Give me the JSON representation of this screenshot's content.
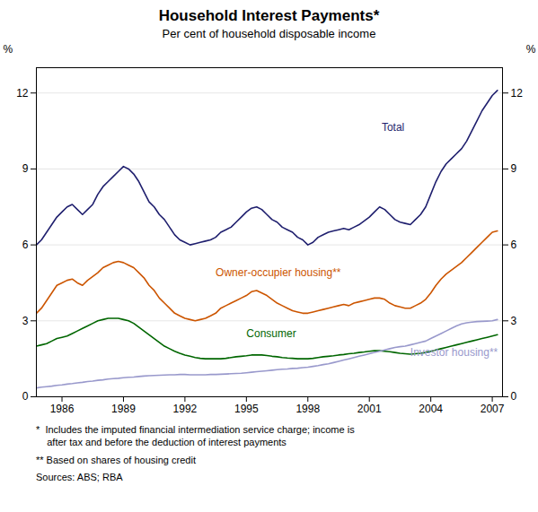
{
  "chart_data": {
    "type": "line",
    "title": "Household Interest Payments*",
    "subtitle": "Per cent of household disposable income",
    "footnotes": [
      "*  Includes the imputed financial intermediation service charge; income is\n    after tax and before the deduction of interest payments",
      "** Based on shares of housing credit",
      "Sources: ABS; RBA"
    ],
    "ylabel": "%",
    "x": [
      1984.75,
      1985.0,
      1985.25,
      1985.5,
      1985.75,
      1986.0,
      1986.25,
      1986.5,
      1986.75,
      1987.0,
      1987.25,
      1987.5,
      1987.75,
      1988.0,
      1988.25,
      1988.5,
      1988.75,
      1989.0,
      1989.25,
      1989.5,
      1989.75,
      1990.0,
      1990.25,
      1990.5,
      1990.75,
      1991.0,
      1991.25,
      1991.5,
      1991.75,
      1992.0,
      1992.25,
      1992.5,
      1992.75,
      1993.0,
      1993.25,
      1993.5,
      1993.75,
      1994.0,
      1994.25,
      1994.5,
      1994.75,
      1995.0,
      1995.25,
      1995.5,
      1995.75,
      1996.0,
      1996.25,
      1996.5,
      1996.75,
      1997.0,
      1997.25,
      1997.5,
      1997.75,
      1998.0,
      1998.25,
      1998.5,
      1998.75,
      1999.0,
      1999.25,
      1999.5,
      1999.75,
      2000.0,
      2000.25,
      2000.5,
      2000.75,
      2001.0,
      2001.25,
      2001.5,
      2001.75,
      2002.0,
      2002.25,
      2002.5,
      2002.75,
      2003.0,
      2003.25,
      2003.5,
      2003.75,
      2004.0,
      2004.25,
      2004.5,
      2004.75,
      2005.0,
      2005.25,
      2005.5,
      2005.75,
      2006.0,
      2006.25,
      2006.5,
      2006.75,
      2007.0,
      2007.25
    ],
    "series": [
      {
        "name": "Total",
        "color": "#1f1f6e",
        "values": [
          6.0,
          6.2,
          6.5,
          6.8,
          7.1,
          7.3,
          7.5,
          7.6,
          7.4,
          7.2,
          7.4,
          7.6,
          8.0,
          8.3,
          8.5,
          8.7,
          8.9,
          9.1,
          9.0,
          8.8,
          8.5,
          8.1,
          7.7,
          7.5,
          7.2,
          7.0,
          6.7,
          6.4,
          6.2,
          6.1,
          6.0,
          6.05,
          6.1,
          6.15,
          6.2,
          6.3,
          6.5,
          6.6,
          6.7,
          6.9,
          7.1,
          7.3,
          7.45,
          7.5,
          7.4,
          7.2,
          7.0,
          6.9,
          6.7,
          6.6,
          6.5,
          6.3,
          6.2,
          6.0,
          6.1,
          6.3,
          6.4,
          6.5,
          6.55,
          6.6,
          6.65,
          6.6,
          6.7,
          6.8,
          6.95,
          7.1,
          7.3,
          7.5,
          7.4,
          7.2,
          7.0,
          6.9,
          6.85,
          6.8,
          7.0,
          7.2,
          7.5,
          8.0,
          8.5,
          8.9,
          9.2,
          9.4,
          9.6,
          9.8,
          10.1,
          10.5,
          10.9,
          11.3,
          11.6,
          11.9,
          12.1
        ]
      },
      {
        "name": "Owner-occupier housing**",
        "color": "#cc5500",
        "values": [
          3.3,
          3.5,
          3.8,
          4.1,
          4.4,
          4.5,
          4.6,
          4.65,
          4.5,
          4.4,
          4.6,
          4.75,
          4.9,
          5.1,
          5.2,
          5.3,
          5.35,
          5.3,
          5.2,
          5.1,
          4.9,
          4.7,
          4.4,
          4.2,
          3.9,
          3.7,
          3.5,
          3.3,
          3.2,
          3.1,
          3.05,
          3.0,
          3.05,
          3.1,
          3.2,
          3.3,
          3.5,
          3.6,
          3.7,
          3.8,
          3.9,
          4.0,
          4.15,
          4.2,
          4.1,
          4.0,
          3.85,
          3.7,
          3.6,
          3.5,
          3.4,
          3.35,
          3.3,
          3.3,
          3.35,
          3.4,
          3.45,
          3.5,
          3.55,
          3.6,
          3.65,
          3.6,
          3.7,
          3.75,
          3.8,
          3.85,
          3.9,
          3.9,
          3.85,
          3.7,
          3.6,
          3.55,
          3.5,
          3.5,
          3.6,
          3.7,
          3.85,
          4.1,
          4.4,
          4.65,
          4.85,
          5.0,
          5.15,
          5.3,
          5.5,
          5.7,
          5.9,
          6.1,
          6.3,
          6.5,
          6.55
        ]
      },
      {
        "name": "Consumer",
        "color": "#006600",
        "values": [
          2.0,
          2.05,
          2.1,
          2.2,
          2.3,
          2.35,
          2.4,
          2.5,
          2.6,
          2.7,
          2.8,
          2.9,
          3.0,
          3.05,
          3.1,
          3.1,
          3.1,
          3.05,
          3.0,
          2.9,
          2.75,
          2.6,
          2.45,
          2.3,
          2.15,
          2.0,
          1.9,
          1.8,
          1.72,
          1.65,
          1.6,
          1.55,
          1.52,
          1.5,
          1.5,
          1.5,
          1.5,
          1.52,
          1.55,
          1.58,
          1.6,
          1.62,
          1.65,
          1.65,
          1.65,
          1.63,
          1.6,
          1.58,
          1.55,
          1.53,
          1.52,
          1.5,
          1.5,
          1.5,
          1.52,
          1.55,
          1.58,
          1.6,
          1.62,
          1.65,
          1.67,
          1.7,
          1.72,
          1.75,
          1.77,
          1.8,
          1.82,
          1.82,
          1.8,
          1.78,
          1.75,
          1.72,
          1.7,
          1.68,
          1.7,
          1.72,
          1.75,
          1.8,
          1.85,
          1.9,
          1.95,
          2.0,
          2.05,
          2.1,
          2.15,
          2.2,
          2.25,
          2.3,
          2.35,
          2.4,
          2.45
        ]
      },
      {
        "name": "Investor housing**",
        "color": "#9999cc",
        "values": [
          0.35,
          0.38,
          0.4,
          0.42,
          0.45,
          0.47,
          0.5,
          0.52,
          0.55,
          0.57,
          0.6,
          0.62,
          0.65,
          0.67,
          0.7,
          0.72,
          0.73,
          0.75,
          0.77,
          0.78,
          0.8,
          0.82,
          0.83,
          0.84,
          0.85,
          0.86,
          0.87,
          0.87,
          0.88,
          0.88,
          0.87,
          0.87,
          0.87,
          0.87,
          0.88,
          0.88,
          0.89,
          0.9,
          0.91,
          0.92,
          0.93,
          0.95,
          0.97,
          0.99,
          1.01,
          1.03,
          1.05,
          1.07,
          1.09,
          1.1,
          1.12,
          1.13,
          1.15,
          1.17,
          1.2,
          1.23,
          1.27,
          1.3,
          1.35,
          1.4,
          1.45,
          1.5,
          1.55,
          1.6,
          1.65,
          1.7,
          1.75,
          1.8,
          1.85,
          1.9,
          1.95,
          1.98,
          2.0,
          2.05,
          2.1,
          2.15,
          2.2,
          2.3,
          2.4,
          2.5,
          2.6,
          2.7,
          2.8,
          2.88,
          2.92,
          2.95,
          2.97,
          2.98,
          2.99,
          3.0,
          3.05
        ]
      }
    ],
    "annotations": [
      {
        "text": "Total",
        "x": 2001.6,
        "y": 10.5
      },
      {
        "text": "Owner-occupier housing**",
        "x": 1993.5,
        "y": 4.75
      },
      {
        "text": "Consumer",
        "x": 1995.0,
        "y": 2.35
      },
      {
        "text": "Investor housing**",
        "x": 2003.0,
        "y": 1.6
      }
    ],
    "xlim": [
      1984.75,
      2007.5
    ],
    "xticks": [
      1986,
      1989,
      1992,
      1995,
      1998,
      2001,
      2004,
      2007
    ],
    "ylim": [
      0,
      13
    ],
    "yticks": [
      0,
      3,
      6,
      9,
      12
    ],
    "grid": true
  }
}
